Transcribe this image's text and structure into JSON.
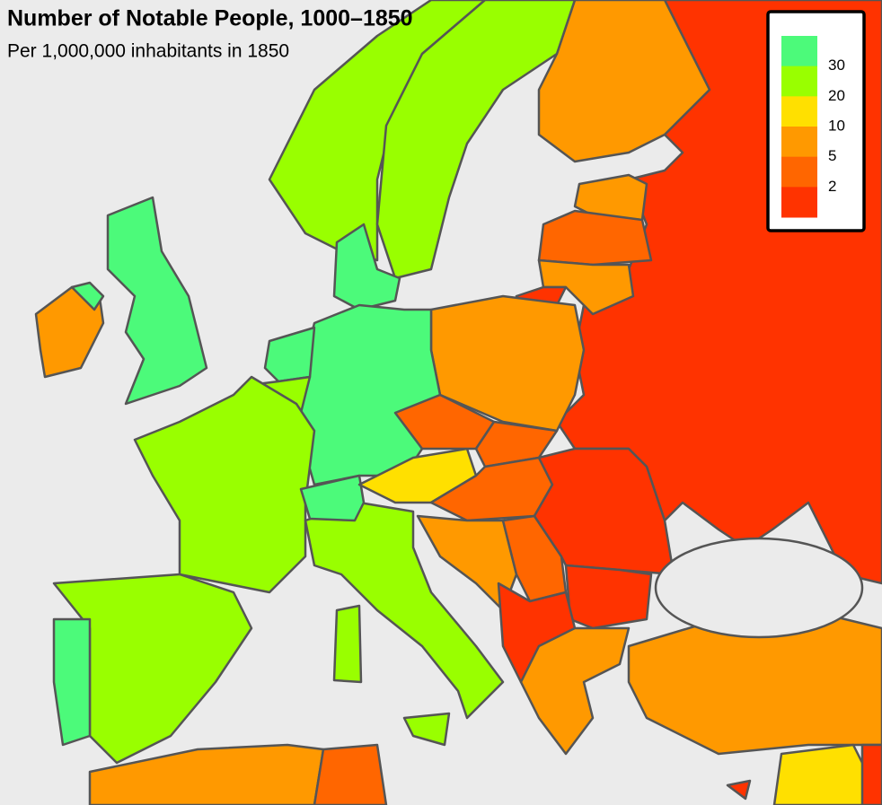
{
  "title": "Number of Notable People, 1000–1850",
  "subtitle": "Per 1,000,000 inhabitants in 1850",
  "legend": {
    "colors": [
      "#4cfa7a",
      "#99ff00",
      "#ffe000",
      "#ff9900",
      "#ff6600",
      "#ff3300"
    ],
    "labels": [
      30,
      20,
      10,
      5,
      2
    ]
  }
}
